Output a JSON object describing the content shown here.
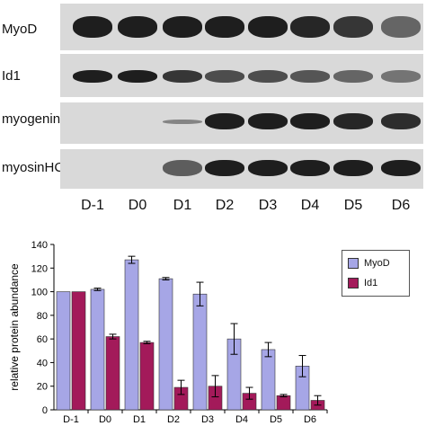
{
  "blot": {
    "rows": [
      "MyoD",
      "Id1",
      "myogenin",
      "myosinHC"
    ],
    "lanes": [
      "D-1",
      "D0",
      "D1",
      "D2",
      "D3",
      "D4",
      "D5",
      "D6"
    ]
  },
  "chart_data": {
    "type": "bar",
    "categories": [
      "D-1",
      "D0",
      "D1",
      "D2",
      "D3",
      "D4",
      "D5",
      "D6"
    ],
    "series": [
      {
        "name": "MyoD",
        "values": [
          100,
          102,
          127,
          111,
          98,
          60,
          51,
          37
        ],
        "errors": [
          0,
          1,
          3,
          1,
          10,
          13,
          6,
          9
        ],
        "color": "#a6a6e6"
      },
      {
        "name": "Id1",
        "values": [
          100,
          62,
          57,
          19,
          20,
          14,
          12,
          8
        ],
        "errors": [
          0,
          2,
          1,
          6,
          9,
          5,
          1,
          4
        ],
        "color": "#a31a5a"
      }
    ],
    "ylabel": "relative protein abundance",
    "ylim": [
      0,
      140
    ],
    "yticks": [
      0,
      20,
      40,
      60,
      80,
      100,
      120,
      140
    ],
    "legend": "right"
  }
}
